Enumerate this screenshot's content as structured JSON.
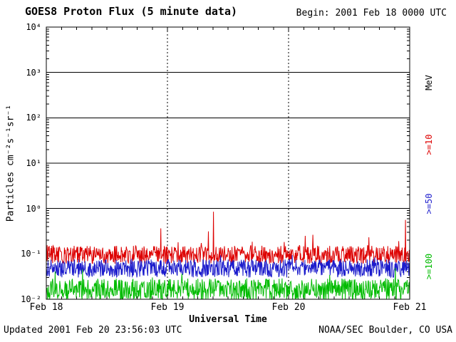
{
  "header": {
    "title": "GOES8 Proton Flux (5 minute data)",
    "begin": "Begin: 2001 Feb 18 0000 UTC"
  },
  "footer": {
    "updated": "Updated 2001 Feb 20 23:56:03 UTC",
    "source": "NOAA/SEC Boulder, CO USA"
  },
  "chart_data": {
    "type": "line",
    "title": "GOES8 Proton Flux (5 minute data)",
    "xlabel": "Universal Time",
    "ylabel": "Particles cm⁻²s⁻¹sr⁻¹",
    "x_tick_labels": [
      "Feb 18",
      "Feb 19",
      "Feb 20",
      "Feb 21"
    ],
    "y_tick_labels": [
      "10⁴",
      "10³",
      "10²",
      "10¹",
      "10⁰",
      "10⁻¹",
      "10⁻²"
    ],
    "y_scale": "log10",
    "ylog_min": -2,
    "ylog_max": 4,
    "x_range_days": 3,
    "points_per_day": 288,
    "solid_gridline_decades": [
      0,
      1,
      2,
      3
    ],
    "dotted_vlines_days": [
      1,
      2
    ],
    "axis_color": "#000000",
    "right_axis": {
      "unit_label": "MeV",
      "unit_color": "#000000",
      "thresholds": [
        {
          "label": ">=10",
          "color": "#dd0000"
        },
        {
          "label": ">=50",
          "color": "#1c1ccc"
        },
        {
          "label": ">=100",
          "color": "#00bb00"
        }
      ]
    },
    "series": [
      {
        "name": ">=10 MeV",
        "color": "#dd0000",
        "log10_base": -1.02,
        "log10_noise": 0.2,
        "spike_prob": 0.03,
        "spike_amp": 0.5,
        "clip_min": -2,
        "seed": 20010218,
        "notable_spikes": [
          {
            "x_frac": 0.46,
            "log10": -0.07
          },
          {
            "x_frac": 0.988,
            "log10": -0.25
          }
        ]
      },
      {
        "name": ">=50 MeV",
        "color": "#1c1ccc",
        "log10_base": -1.32,
        "log10_noise": 0.2,
        "spike_prob": 0.015,
        "spike_amp": 0.35,
        "clip_min": -2,
        "seed": 50,
        "notable_spikes": []
      },
      {
        "name": ">=100 MeV",
        "color": "#00bb00",
        "log10_base": -1.78,
        "log10_noise": 0.24,
        "spike_prob": 0.012,
        "spike_amp": 0.35,
        "clip_min": -2,
        "seed": 100,
        "notable_spikes": []
      }
    ]
  }
}
